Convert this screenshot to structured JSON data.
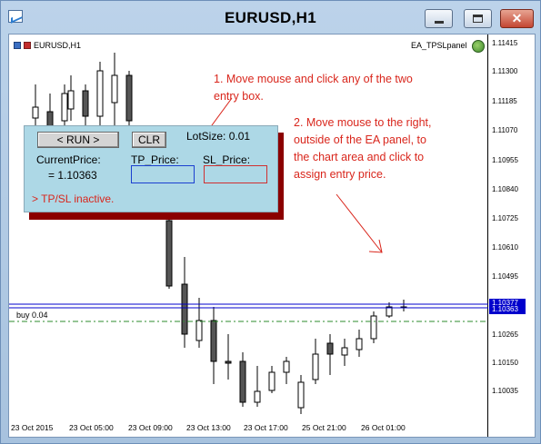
{
  "window": {
    "title": "EURUSD,H1",
    "controls": {
      "close_glyph": "✕"
    }
  },
  "chart": {
    "symbol_label": "EURUSD,H1",
    "ea_label": "EA_TPSLpanel",
    "current_price_label": "1.10363",
    "order_line_label": "buy 0.04",
    "price_axis": [
      "1.11415",
      "1.11300",
      "1.11185",
      "1.11070",
      "1.10955",
      "1.10840",
      "1.10725",
      "1.10610",
      "1.10495",
      "1.10265",
      "1.10150",
      "1.10035"
    ],
    "price_axis_highlight": "1.10377",
    "time_axis": [
      "23 Oct 2015",
      "23 Oct 05:00",
      "23 Oct 09:00",
      "23 Oct 13:00",
      "23 Oct 17:00",
      "25 Oct 21:00",
      "26 Oct 01:00"
    ],
    "colors": {
      "bear": "#555555",
      "bull": "#ffffff",
      "level": "#0000cc",
      "order": "#2e8b2e",
      "annotation": "#d9261c"
    }
  },
  "panel": {
    "run_button": "< RUN >",
    "clr_button": "CLR",
    "lot_size": "LotSize: 0.01",
    "current_price_label": "CurrentPrice:",
    "current_price_value": "= 1.10363",
    "tp_label": "TP_Price:",
    "sl_label": "SL_Price:",
    "tp_value": "",
    "sl_value": "",
    "status": "> TP/SL inactive."
  },
  "annotations": {
    "step1_line1": "1. Move mouse and click any of the two",
    "step1_line2": "entry box.",
    "step2_line1": "2. Move mouse to the right,",
    "step2_line2": "outside of the EA panel, to",
    "step2_line3": "the chart area and click to",
    "step2_line4": "assign entry price."
  }
}
